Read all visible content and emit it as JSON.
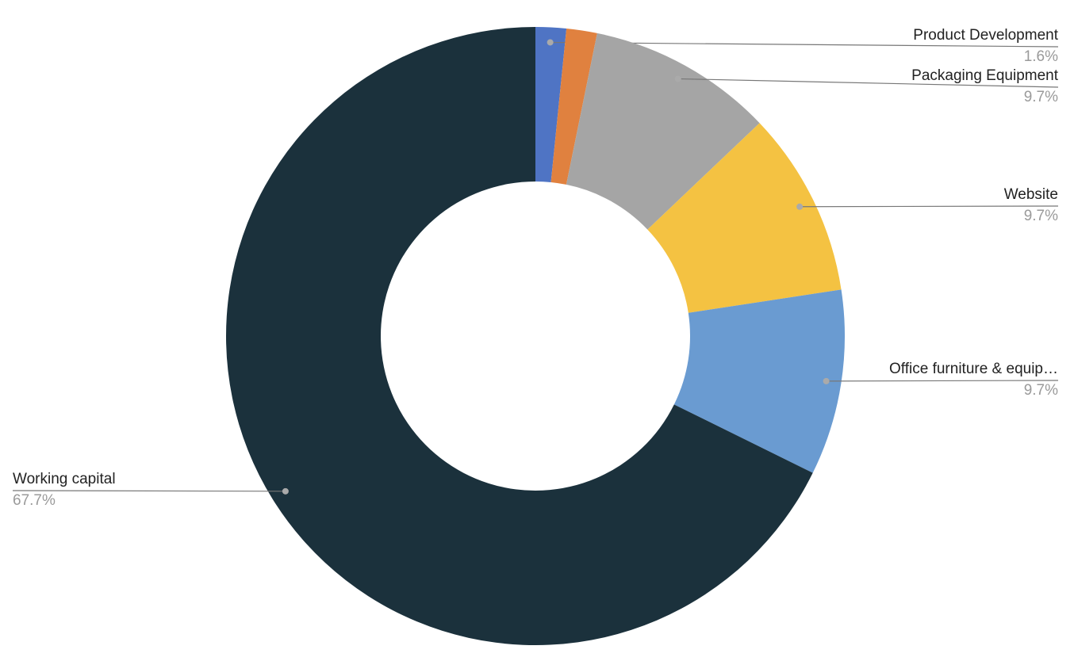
{
  "chart_data": {
    "type": "donut",
    "categories": [
      "Product Development",
      null,
      "Packaging Equipment",
      "Website",
      "Office furniture & equip…",
      "Working capital"
    ],
    "values": [
      1.6,
      1.6,
      9.7,
      9.7,
      9.7,
      67.7
    ],
    "value_labels": [
      "1.6%",
      null,
      "9.7%",
      "9.7%",
      "9.7%",
      "67.7%"
    ],
    "colors": [
      "#4f74c4",
      "#e0813f",
      "#a5a5a5",
      "#f4c242",
      "#6a9bd1",
      "#1b313c"
    ]
  }
}
